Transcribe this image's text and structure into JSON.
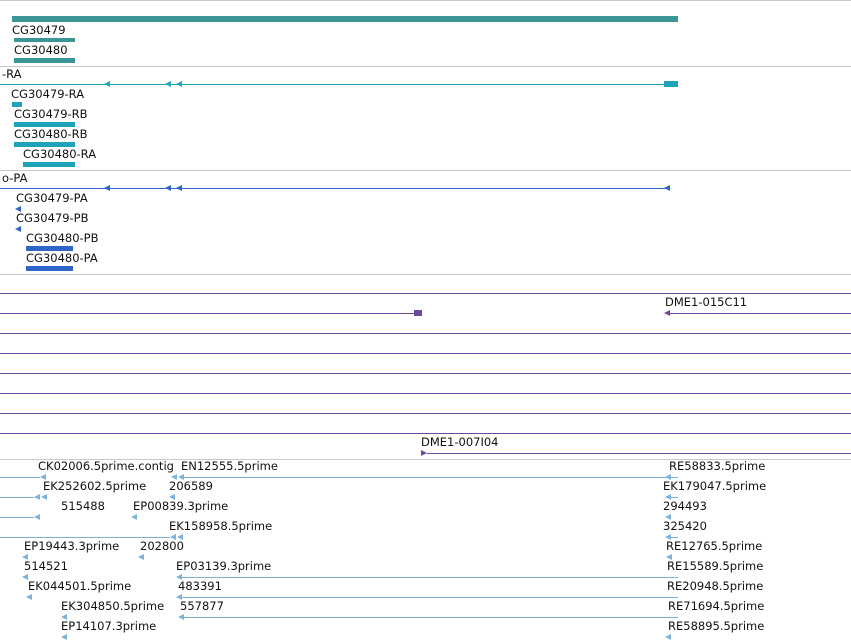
{
  "colors": {
    "gene": "#3a9597",
    "transcript": "#1fa3b8",
    "protein": "#2f64c8",
    "clone": "#6a4a9a",
    "est": "#7fb2d8",
    "separator": "#c9c9c9"
  },
  "gene_track": {
    "labels": [
      "CG30479",
      "CG30480"
    ]
  },
  "transcript_track": {
    "partial_label": "-RA",
    "labels": [
      "CG30479-RA",
      "CG30479-RB",
      "CG30480-RB",
      "CG30480-RA"
    ]
  },
  "protein_track": {
    "partial_label": "o-PA",
    "labels": [
      "CG30479-PA",
      "CG30479-PB",
      "CG30480-PB",
      "CG30480-PA"
    ]
  },
  "clone_track": {
    "labels": [
      "DME1-015C11",
      "DME1-007I04"
    ]
  },
  "est_track": {
    "labels": [
      "CK02006.5prime.contig",
      "EN12555.5prime",
      "RE58833.5prime",
      "EK252602.5prime",
      "206589",
      "EK179047.5prime",
      "515488",
      "EP00839.3prime",
      "294493",
      "EK158958.5prime",
      "325420",
      "EP19443.3prime",
      "202800",
      "RE12765.5prime",
      "514521",
      "EP03139.3prime",
      "RE15589.5prime",
      "EK044501.5prime",
      "483391",
      "RE20948.5prime",
      "EK304850.5prime",
      "557877",
      "RE71694.5prime",
      "EP14107.3prime",
      "RE58895.5prime"
    ]
  }
}
